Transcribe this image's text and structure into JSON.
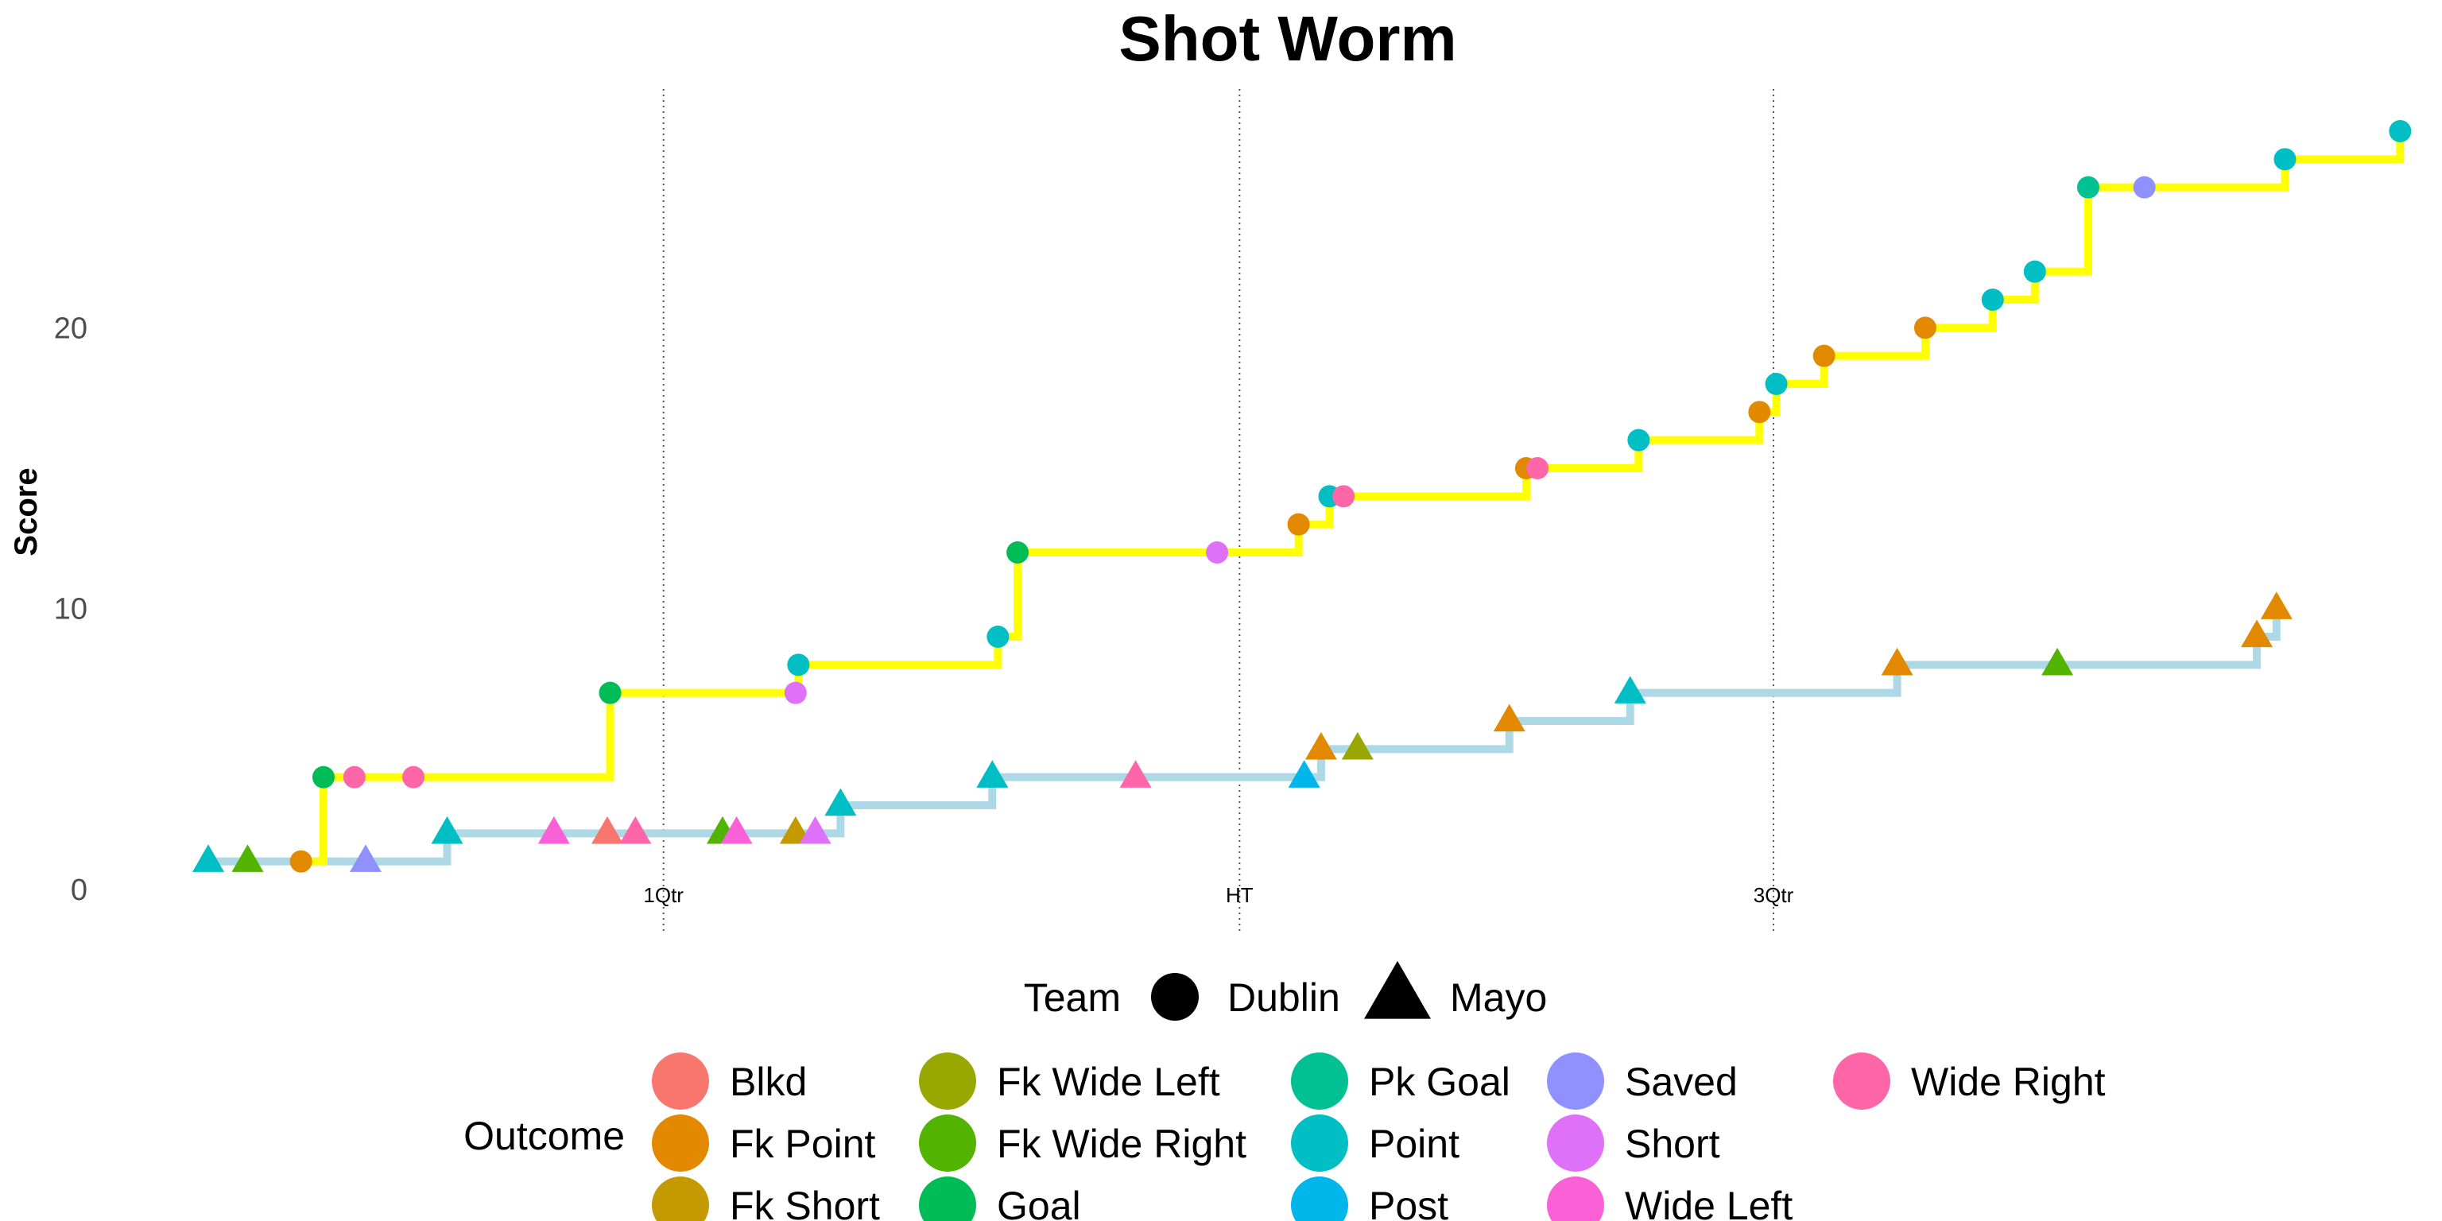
{
  "chart_data": {
    "type": "step-line",
    "title": "Shot Worm",
    "xlabel": "",
    "ylabel": "Score",
    "xlim": [
      0,
      77
    ],
    "ylim": [
      -1.5,
      28.5
    ],
    "y_ticks": [
      0,
      10,
      20
    ],
    "grid": false,
    "vertical_markers": [
      {
        "x": 16.2,
        "label": "1Qtr"
      },
      {
        "x": 36.7,
        "label": "HT"
      },
      {
        "x": 55.7,
        "label": "3Qtr"
      }
    ],
    "series": [
      {
        "name": "Dublin",
        "line_color": "#FFFF00",
        "shape": "circle",
        "points": [
          {
            "x": 3.3,
            "y": 1,
            "outcome": "Fk Point"
          },
          {
            "x": 4.1,
            "y": 4,
            "outcome": "Goal"
          },
          {
            "x": 5.2,
            "y": 4,
            "outcome": "Wide Right"
          },
          {
            "x": 7.3,
            "y": 4,
            "outcome": "Wide Right"
          },
          {
            "x": 14.3,
            "y": 7,
            "outcome": "Goal"
          },
          {
            "x": 20.9,
            "y": 7,
            "outcome": "Short"
          },
          {
            "x": 21.0,
            "y": 8,
            "outcome": "Point"
          },
          {
            "x": 28.1,
            "y": 9,
            "outcome": "Point"
          },
          {
            "x": 28.8,
            "y": 12,
            "outcome": "Goal"
          },
          {
            "x": 35.9,
            "y": 12,
            "outcome": "Short"
          },
          {
            "x": 38.8,
            "y": 13,
            "outcome": "Fk Point"
          },
          {
            "x": 39.9,
            "y": 14,
            "outcome": "Point"
          },
          {
            "x": 40.4,
            "y": 14,
            "outcome": "Wide Right"
          },
          {
            "x": 46.9,
            "y": 15,
            "outcome": "Fk Point"
          },
          {
            "x": 47.3,
            "y": 15,
            "outcome": "Wide Right"
          },
          {
            "x": 50.9,
            "y": 16,
            "outcome": "Point"
          },
          {
            "x": 55.2,
            "y": 17,
            "outcome": "Fk Point"
          },
          {
            "x": 55.8,
            "y": 18,
            "outcome": "Point"
          },
          {
            "x": 57.5,
            "y": 19,
            "outcome": "Fk Point"
          },
          {
            "x": 61.1,
            "y": 20,
            "outcome": "Fk Point"
          },
          {
            "x": 63.5,
            "y": 21,
            "outcome": "Point"
          },
          {
            "x": 65.0,
            "y": 22,
            "outcome": "Point"
          },
          {
            "x": 66.9,
            "y": 25,
            "outcome": "Pk Goal"
          },
          {
            "x": 68.9,
            "y": 25,
            "outcome": "Saved"
          },
          {
            "x": 73.9,
            "y": 26,
            "outcome": "Point"
          },
          {
            "x": 78.0,
            "y": 27,
            "outcome": "Point"
          }
        ]
      },
      {
        "name": "Mayo",
        "line_color": "#ADD8E6",
        "shape": "triangle",
        "points": [
          {
            "x": 0.0,
            "y": 1,
            "outcome": "Point"
          },
          {
            "x": 1.4,
            "y": 1,
            "outcome": "Fk Wide Right"
          },
          {
            "x": 5.6,
            "y": 1,
            "outcome": "Saved"
          },
          {
            "x": 8.5,
            "y": 2,
            "outcome": "Point"
          },
          {
            "x": 12.3,
            "y": 2,
            "outcome": "Wide Left"
          },
          {
            "x": 14.2,
            "y": 2,
            "outcome": "Blkd"
          },
          {
            "x": 15.2,
            "y": 2,
            "outcome": "Wide Right"
          },
          {
            "x": 18.3,
            "y": 2,
            "outcome": "Fk Wide Right"
          },
          {
            "x": 18.8,
            "y": 2,
            "outcome": "Wide Left"
          },
          {
            "x": 20.9,
            "y": 2,
            "outcome": "Fk Short"
          },
          {
            "x": 21.6,
            "y": 2,
            "outcome": "Short"
          },
          {
            "x": 22.5,
            "y": 3,
            "outcome": "Point"
          },
          {
            "x": 27.9,
            "y": 4,
            "outcome": "Point"
          },
          {
            "x": 33.0,
            "y": 4,
            "outcome": "Wide Right"
          },
          {
            "x": 39.0,
            "y": 4,
            "outcome": "Post"
          },
          {
            "x": 39.6,
            "y": 5,
            "outcome": "Fk Point"
          },
          {
            "x": 40.9,
            "y": 5,
            "outcome": "Fk Wide Left"
          },
          {
            "x": 46.3,
            "y": 6,
            "outcome": "Fk Point"
          },
          {
            "x": 50.6,
            "y": 7,
            "outcome": "Point"
          },
          {
            "x": 60.1,
            "y": 8,
            "outcome": "Fk Point"
          },
          {
            "x": 65.8,
            "y": 8,
            "outcome": "Fk Wide Right"
          },
          {
            "x": 72.9,
            "y": 9,
            "outcome": "Fk Point"
          },
          {
            "x": 73.6,
            "y": 10,
            "outcome": "Fk Point"
          }
        ]
      }
    ],
    "legend": {
      "placement": "bottom",
      "team_title": "Team",
      "teams": [
        {
          "name": "Dublin",
          "shape": "circle"
        },
        {
          "name": "Mayo",
          "shape": "triangle"
        }
      ],
      "outcome_title": "Outcome",
      "outcomes": [
        {
          "name": "Blkd",
          "color": "#F8766D"
        },
        {
          "name": "Fk Point",
          "color": "#E38900"
        },
        {
          "name": "Fk Short",
          "color": "#C49A00"
        },
        {
          "name": "Fk Wide Left",
          "color": "#99A800"
        },
        {
          "name": "Fk Wide Right",
          "color": "#53B400"
        },
        {
          "name": "Goal",
          "color": "#00BC56"
        },
        {
          "name": "Pk Goal",
          "color": "#00C094"
        },
        {
          "name": "Point",
          "color": "#00BFC4"
        },
        {
          "name": "Post",
          "color": "#00B6EB"
        },
        {
          "name": "Saved",
          "color": "#8F91FF"
        },
        {
          "name": "Short",
          "color": "#DF70F8"
        },
        {
          "name": "Wide Left",
          "color": "#FB61D7"
        },
        {
          "name": "Wide Right",
          "color": "#FF66A8"
        }
      ]
    }
  }
}
